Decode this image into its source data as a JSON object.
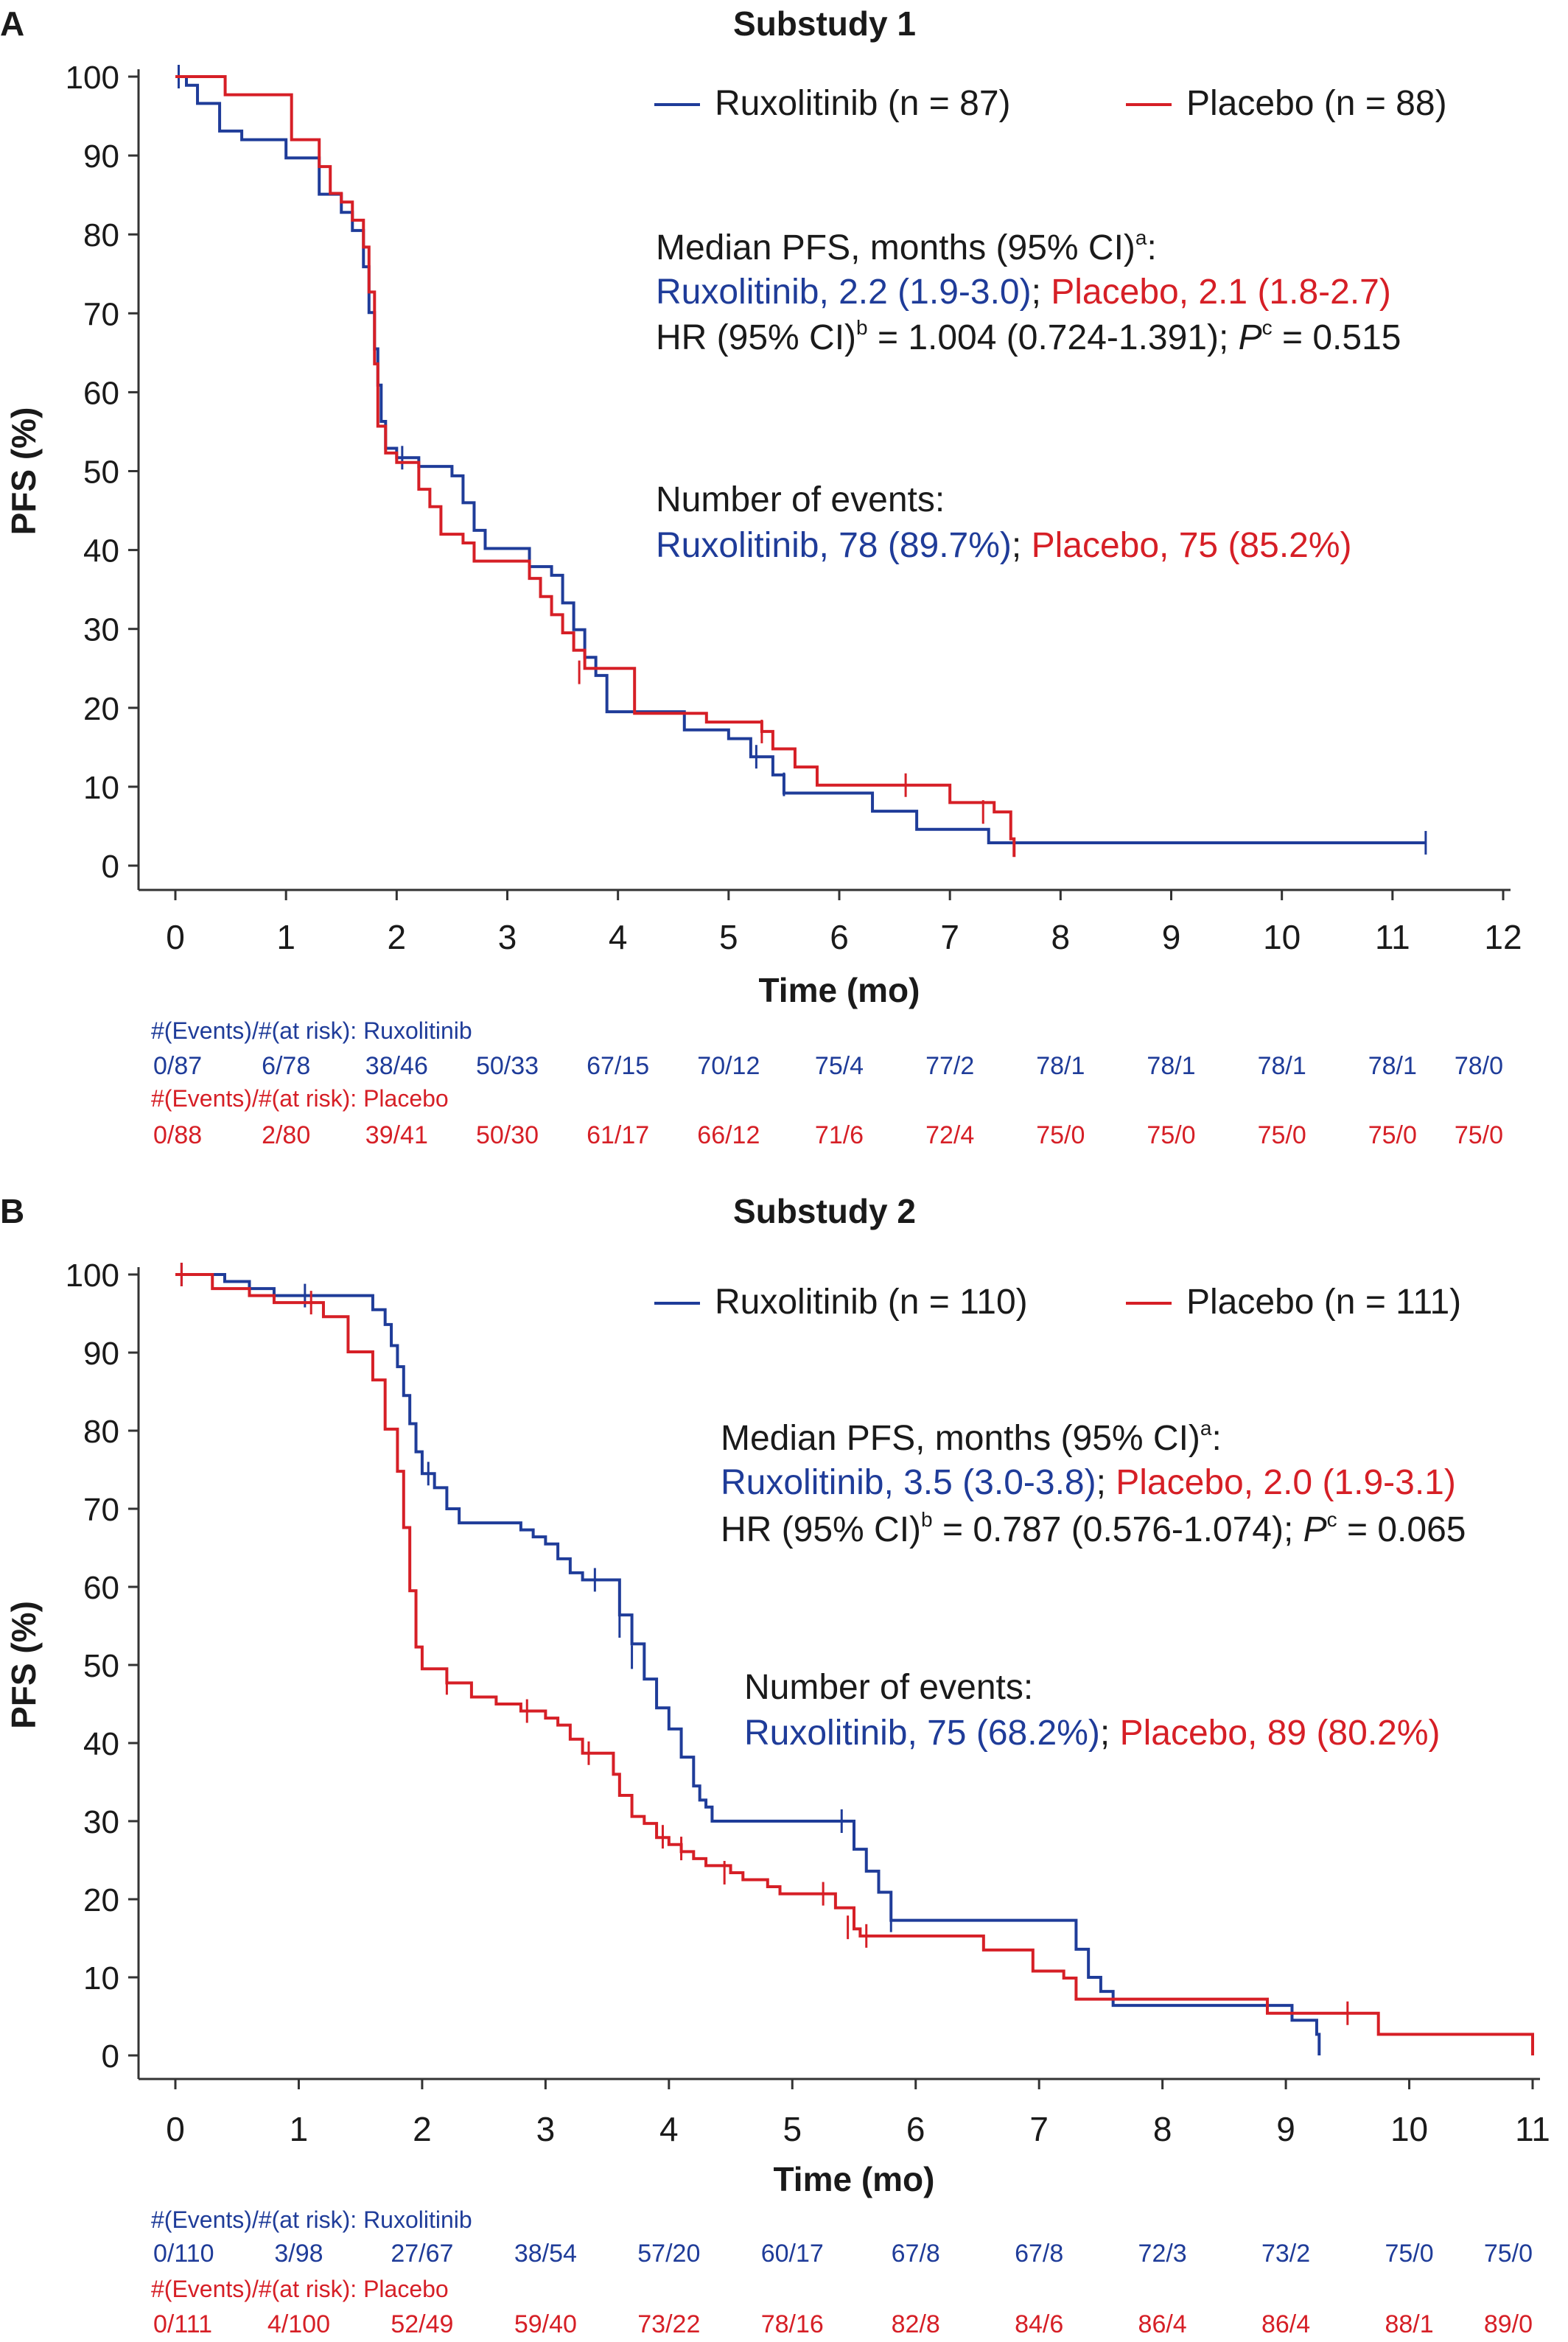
{
  "colors": {
    "ruxolitinib": "#1f3c99",
    "placebo": "#d61f26",
    "text": "#1a1a1a"
  },
  "chart_data": [
    {
      "type": "line",
      "panel_label": "A",
      "title": "Substudy 1",
      "xlabel": "Time (mo)",
      "ylabel": "PFS (%)",
      "xlim": [
        0,
        12
      ],
      "ylim": [
        0,
        100
      ],
      "xticks": [
        0,
        1,
        2,
        3,
        4,
        5,
        6,
        7,
        8,
        9,
        10,
        11,
        12
      ],
      "yticks": [
        0,
        10,
        20,
        30,
        40,
        50,
        60,
        70,
        80,
        90,
        100
      ],
      "legend": [
        {
          "name": "Ruxolitinib (n = 87)",
          "color": "#1f3c99"
        },
        {
          "name": "Placebo (n = 88)",
          "color": "#d61f26"
        }
      ],
      "annotations": {
        "median_title": "Median PFS, months (95% CI)",
        "median_title_sup": "a",
        "median_title_end": ":",
        "median_rux": "Ruxolitinib, 2.2 (1.9-3.0)",
        "sep": ";",
        "median_pla": "Placebo, 2.1 (1.8-2.7)",
        "hr_text_1": "HR (95% CI)",
        "hr_sup_1": "b",
        "hr_text_2": " =  1.004 (0.724-1.391); ",
        "hr_p": "P",
        "hr_sup_2": "c",
        "hr_text_3": " = 0.515",
        "events_title": "Number of events:",
        "events_rux": "Ruxolitinib, 78 (89.7%)",
        "events_pla": "Placebo, 75 (85.2%)"
      },
      "series": [
        {
          "name": "Ruxolitinib (n = 87)",
          "color": "#1f3c99",
          "points": [
            [
              0,
              100
            ],
            [
              0.1,
              98.9
            ],
            [
              0.2,
              96.6
            ],
            [
              0.4,
              93.1
            ],
            [
              0.6,
              92
            ],
            [
              1.0,
              89.7
            ],
            [
              1.3,
              85.1
            ],
            [
              1.5,
              82.8
            ],
            [
              1.6,
              80.5
            ],
            [
              1.7,
              75.9
            ],
            [
              1.75,
              70.1
            ],
            [
              1.8,
              65.5
            ],
            [
              1.83,
              60.9
            ],
            [
              1.86,
              56.3
            ],
            [
              1.9,
              52.9
            ],
            [
              2.0,
              51.7
            ],
            [
              2.2,
              50.6
            ],
            [
              2.5,
              49.4
            ],
            [
              2.6,
              46
            ],
            [
              2.7,
              42.5
            ],
            [
              2.8,
              40.2
            ],
            [
              3.0,
              40.2
            ],
            [
              3.2,
              37.9
            ],
            [
              3.4,
              36.8
            ],
            [
              3.5,
              33.3
            ],
            [
              3.6,
              29.9
            ],
            [
              3.7,
              26.4
            ],
            [
              3.8,
              24.1
            ],
            [
              3.9,
              19.5
            ],
            [
              4.5,
              19.5
            ],
            [
              4.6,
              17.2
            ],
            [
              5.0,
              16.1
            ],
            [
              5.2,
              13.8
            ],
            [
              5.4,
              11.5
            ],
            [
              5.5,
              9.2
            ],
            [
              6.2,
              9.2
            ],
            [
              6.3,
              6.9
            ],
            [
              6.7,
              4.6
            ],
            [
              7.3,
              4.6
            ],
            [
              7.35,
              2.9
            ],
            [
              11.3,
              2.9
            ]
          ],
          "censor": [
            [
              0.03,
              100
            ],
            [
              2.05,
              51.7
            ],
            [
              5.25,
              13.8
            ],
            [
              5.5,
              10.3
            ],
            [
              11.3,
              2.9
            ]
          ]
        },
        {
          "name": "Placebo (n = 88)",
          "color": "#d61f26",
          "points": [
            [
              0,
              100
            ],
            [
              0.45,
              97.7
            ],
            [
              1.0,
              97.7
            ],
            [
              1.05,
              92
            ],
            [
              1.3,
              88.6
            ],
            [
              1.4,
              85.2
            ],
            [
              1.5,
              84.1
            ],
            [
              1.6,
              81.8
            ],
            [
              1.7,
              78.4
            ],
            [
              1.75,
              72.7
            ],
            [
              1.8,
              63.6
            ],
            [
              1.83,
              55.7
            ],
            [
              1.9,
              52.3
            ],
            [
              2.0,
              51.1
            ],
            [
              2.2,
              47.7
            ],
            [
              2.3,
              45.5
            ],
            [
              2.4,
              42
            ],
            [
              2.6,
              40.9
            ],
            [
              2.7,
              38.6
            ],
            [
              3.0,
              38.6
            ],
            [
              3.2,
              36.4
            ],
            [
              3.3,
              34.1
            ],
            [
              3.4,
              31.8
            ],
            [
              3.5,
              29.5
            ],
            [
              3.6,
              27.3
            ],
            [
              3.7,
              25
            ],
            [
              4.1,
              25
            ],
            [
              4.15,
              19.3
            ],
            [
              4.8,
              18.2
            ],
            [
              5.3,
              17
            ],
            [
              5.4,
              14.8
            ],
            [
              5.6,
              12.5
            ],
            [
              5.8,
              10.2
            ],
            [
              6.6,
              10.2
            ],
            [
              7.0,
              8
            ],
            [
              7.4,
              6.8
            ],
            [
              7.55,
              3.4
            ],
            [
              7.58,
              1.1
            ]
          ],
          "censor": [
            [
              3.65,
              24.5
            ],
            [
              5.3,
              17
            ],
            [
              6.6,
              10.2
            ],
            [
              7.3,
              6.8
            ]
          ]
        }
      ],
      "risk_table": {
        "rux_label": "#(Events)/#(at risk): Ruxolitinib",
        "rux_values": [
          "0/87",
          "6/78",
          "38/46",
          "50/33",
          "67/15",
          "70/12",
          "75/4",
          "77/2",
          "78/1",
          "78/1",
          "78/1",
          "78/1",
          "78/0"
        ],
        "pla_label": "#(Events)/#(at risk): Placebo",
        "pla_values": [
          "0/88",
          "2/80",
          "39/41",
          "50/30",
          "61/17",
          "66/12",
          "71/6",
          "72/4",
          "75/0",
          "75/0",
          "75/0",
          "75/0",
          "75/0"
        ]
      }
    },
    {
      "type": "line",
      "panel_label": "B",
      "title": "Substudy 2",
      "xlabel": "Time (mo)",
      "ylabel": "PFS (%)",
      "xlim": [
        0,
        11
      ],
      "ylim": [
        0,
        100
      ],
      "xticks": [
        0,
        1,
        2,
        3,
        4,
        5,
        6,
        7,
        8,
        9,
        10,
        11
      ],
      "yticks": [
        0,
        10,
        20,
        30,
        40,
        50,
        60,
        70,
        80,
        90,
        100
      ],
      "legend": [
        {
          "name": "Ruxolitinib (n = 110)",
          "color": "#1f3c99"
        },
        {
          "name": "Placebo (n = 111)",
          "color": "#d61f26"
        }
      ],
      "annotations": {
        "median_title": "Median PFS, months (95% CI)",
        "median_title_sup": "a",
        "median_title_end": ":",
        "median_rux": "Ruxolitinib, 3.5 (3.0-3.8)",
        "sep": ";",
        "median_pla": "Placebo, 2.0 (1.9-3.1)",
        "hr_text_1": "HR (95% CI)",
        "hr_sup_1": "b",
        "hr_text_2": " =  0.787 (0.576-1.074); ",
        "hr_p": "P",
        "hr_sup_2": "c",
        "hr_text_3": " = 0.065",
        "events_title": "Number of events:",
        "events_rux": "Ruxolitinib, 75 (68.2%)",
        "events_pla": "Placebo, 89 (80.2%)"
      },
      "series": [
        {
          "name": "Ruxolitinib (n = 110)",
          "color": "#1f3c99",
          "points": [
            [
              0,
              100
            ],
            [
              0.4,
              99.1
            ],
            [
              0.6,
              98.2
            ],
            [
              0.8,
              97.3
            ],
            [
              1.55,
              97.3
            ],
            [
              1.6,
              95.5
            ],
            [
              1.7,
              93.6
            ],
            [
              1.75,
              90.9
            ],
            [
              1.8,
              88.2
            ],
            [
              1.85,
              84.5
            ],
            [
              1.9,
              80.9
            ],
            [
              1.95,
              77.3
            ],
            [
              2.0,
              74.5
            ],
            [
              2.1,
              72.7
            ],
            [
              2.2,
              70
            ],
            [
              2.3,
              68.2
            ],
            [
              2.7,
              68.2
            ],
            [
              2.8,
              67.3
            ],
            [
              2.9,
              66.4
            ],
            [
              3.0,
              65.5
            ],
            [
              3.1,
              63.6
            ],
            [
              3.2,
              61.8
            ],
            [
              3.3,
              60.9
            ],
            [
              3.5,
              60.9
            ],
            [
              3.6,
              56.4
            ],
            [
              3.7,
              52.7
            ],
            [
              3.8,
              48.2
            ],
            [
              3.9,
              44.5
            ],
            [
              4.0,
              41.8
            ],
            [
              4.1,
              38.2
            ],
            [
              4.2,
              34.5
            ],
            [
              4.25,
              32.7
            ],
            [
              4.3,
              31.8
            ],
            [
              4.35,
              30
            ],
            [
              5.4,
              30
            ],
            [
              5.5,
              26.4
            ],
            [
              5.6,
              23.6
            ],
            [
              5.7,
              20.9
            ],
            [
              5.8,
              17.3
            ],
            [
              7.2,
              17.3
            ],
            [
              7.3,
              13.6
            ],
            [
              7.4,
              10
            ],
            [
              7.5,
              8.2
            ],
            [
              7.6,
              6.4
            ],
            [
              9.0,
              6.4
            ],
            [
              9.05,
              4.5
            ],
            [
              9.2,
              4.5
            ],
            [
              9.25,
              2.7
            ],
            [
              9.27,
              0
            ]
          ],
          "censor": [
            [
              0.05,
              100
            ],
            [
              1.05,
              97.3
            ],
            [
              2.05,
              74.5
            ],
            [
              3.4,
              60.9
            ],
            [
              3.6,
              55
            ],
            [
              3.7,
              51
            ],
            [
              5.4,
              30
            ],
            [
              5.8,
              17.3
            ]
          ]
        },
        {
          "name": "Placebo (n = 111)",
          "color": "#d61f26",
          "points": [
            [
              0,
              100
            ],
            [
              0.3,
              98.2
            ],
            [
              0.6,
              97.3
            ],
            [
              0.8,
              96.4
            ],
            [
              1.1,
              96.4
            ],
            [
              1.2,
              94.6
            ],
            [
              1.4,
              90.1
            ],
            [
              1.6,
              86.5
            ],
            [
              1.7,
              80.2
            ],
            [
              1.8,
              74.8
            ],
            [
              1.85,
              67.6
            ],
            [
              1.9,
              59.5
            ],
            [
              1.95,
              52.3
            ],
            [
              2.0,
              49.5
            ],
            [
              2.2,
              47.7
            ],
            [
              2.4,
              45.9
            ],
            [
              2.6,
              45
            ],
            [
              2.8,
              44.1
            ],
            [
              3.0,
              43.2
            ],
            [
              3.1,
              42.3
            ],
            [
              3.2,
              40.5
            ],
            [
              3.3,
              38.7
            ],
            [
              3.5,
              38.7
            ],
            [
              3.55,
              36
            ],
            [
              3.6,
              33.3
            ],
            [
              3.7,
              30.6
            ],
            [
              3.8,
              29.7
            ],
            [
              3.9,
              27.9
            ],
            [
              4.0,
              27
            ],
            [
              4.1,
              26.1
            ],
            [
              4.2,
              25.2
            ],
            [
              4.3,
              24.3
            ],
            [
              4.5,
              23.4
            ],
            [
              4.6,
              22.5
            ],
            [
              4.8,
              21.6
            ],
            [
              4.9,
              20.7
            ],
            [
              5.3,
              20.7
            ],
            [
              5.35,
              18.9
            ],
            [
              5.5,
              16.2
            ],
            [
              5.55,
              15.3
            ],
            [
              6.5,
              15.3
            ],
            [
              6.55,
              13.5
            ],
            [
              6.9,
              13.5
            ],
            [
              6.95,
              10.8
            ],
            [
              7.2,
              9.9
            ],
            [
              7.3,
              7.2
            ],
            [
              7.35,
              7.2
            ],
            [
              7.4,
              7.2
            ],
            [
              8.8,
              7.2
            ],
            [
              8.85,
              5.4
            ],
            [
              9.7,
              5.4
            ],
            [
              9.75,
              2.7
            ],
            [
              11.0,
              2.7
            ],
            [
              11.0,
              0
            ]
          ],
          "censor": [
            [
              0.05,
              100
            ],
            [
              1.1,
              96.4
            ],
            [
              1.8,
              78
            ],
            [
              2.2,
              47.7
            ],
            [
              2.85,
              44.1
            ],
            [
              3.35,
              38.7
            ],
            [
              3.95,
              28
            ],
            [
              4.1,
              26.5
            ],
            [
              4.45,
              23.4
            ],
            [
              5.25,
              20.7
            ],
            [
              5.45,
              16.4
            ],
            [
              5.6,
              15.3
            ],
            [
              9.5,
              5.4
            ]
          ]
        }
      ],
      "risk_table": {
        "rux_label": "#(Events)/#(at risk): Ruxolitinib",
        "rux_values": [
          "0/110",
          "3/98",
          "27/67",
          "38/54",
          "57/20",
          "60/17",
          "67/8",
          "67/8",
          "72/3",
          "73/2",
          "75/0",
          "75/0"
        ],
        "pla_label": "#(Events)/#(at risk): Placebo",
        "pla_values": [
          "0/111",
          "4/100",
          "52/49",
          "59/40",
          "73/22",
          "78/16",
          "82/8",
          "84/6",
          "86/4",
          "86/4",
          "88/1",
          "89/0"
        ]
      }
    }
  ]
}
